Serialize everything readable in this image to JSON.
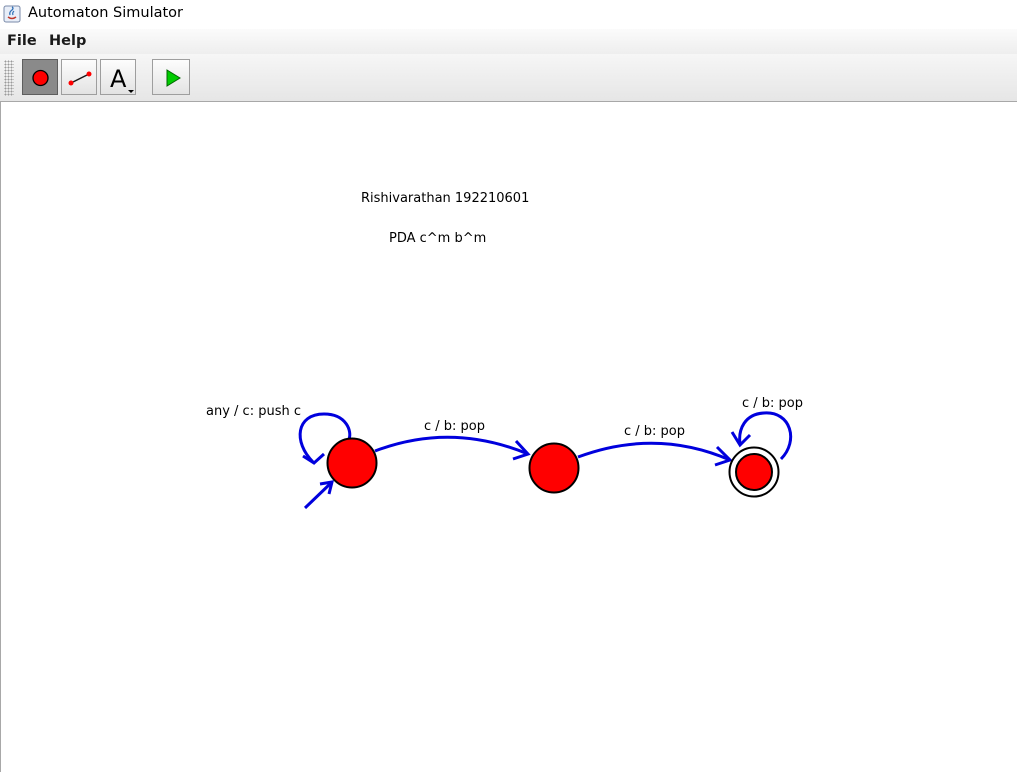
{
  "window": {
    "title": "Automaton Simulator"
  },
  "menu": {
    "file": "File",
    "help": "Help"
  },
  "toolbar": {
    "text_tool_glyph": "A",
    "tools": [
      "state-tool",
      "transition-tool",
      "text-tool",
      "simulate-tool"
    ]
  },
  "canvas": {
    "author": "Rishivarathan 192210601",
    "caption": "PDA c^m b^m",
    "transitions": {
      "loop_q0": "any / c: push c",
      "q0_q1": "c / b: pop",
      "q1_q2": "c / b: pop",
      "loop_q2": "c / b: pop"
    }
  },
  "colors": {
    "state_fill": "#ff0000",
    "transition": "#0000dd",
    "play": "#00cc00"
  }
}
